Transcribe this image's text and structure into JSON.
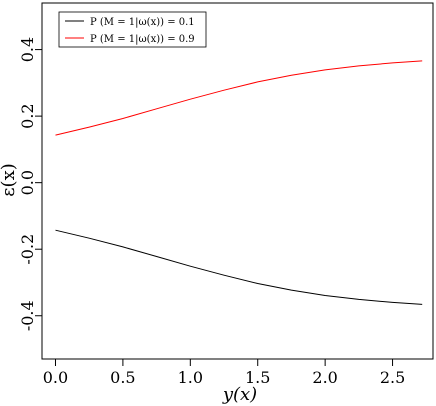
{
  "chart_data": {
    "type": "line",
    "xlabel": "y(x)",
    "ylabel": "ε(x)",
    "xlim": [
      -0.1,
      2.8
    ],
    "ylim": [
      -0.53,
      0.54
    ],
    "xticks": [
      "0.0",
      "0.5",
      "1.0",
      "1.5",
      "2.0",
      "2.5"
    ],
    "yticks": [
      "-0.4",
      "-0.2",
      "0.0",
      "0.2",
      "0.4"
    ],
    "legend_position": "top-left",
    "grid": false,
    "series": [
      {
        "name": "P (M = 1|ω(x)) = 0.1",
        "color": "#000000",
        "x": [
          0.0,
          0.25,
          0.5,
          0.75,
          1.0,
          1.25,
          1.5,
          1.75,
          2.0,
          2.25,
          2.5,
          2.72
        ],
        "y": [
          -0.143,
          -0.167,
          -0.193,
          -0.222,
          -0.251,
          -0.278,
          -0.303,
          -0.323,
          -0.339,
          -0.351,
          -0.36,
          -0.366
        ]
      },
      {
        "name": "P (M = 1|ω(x)) = 0.9",
        "color": "#ff0000",
        "x": [
          0.0,
          0.25,
          0.5,
          0.75,
          1.0,
          1.25,
          1.5,
          1.75,
          2.0,
          2.25,
          2.5,
          2.72
        ],
        "y": [
          0.143,
          0.167,
          0.193,
          0.222,
          0.251,
          0.278,
          0.303,
          0.323,
          0.339,
          0.351,
          0.36,
          0.366
        ]
      }
    ]
  }
}
